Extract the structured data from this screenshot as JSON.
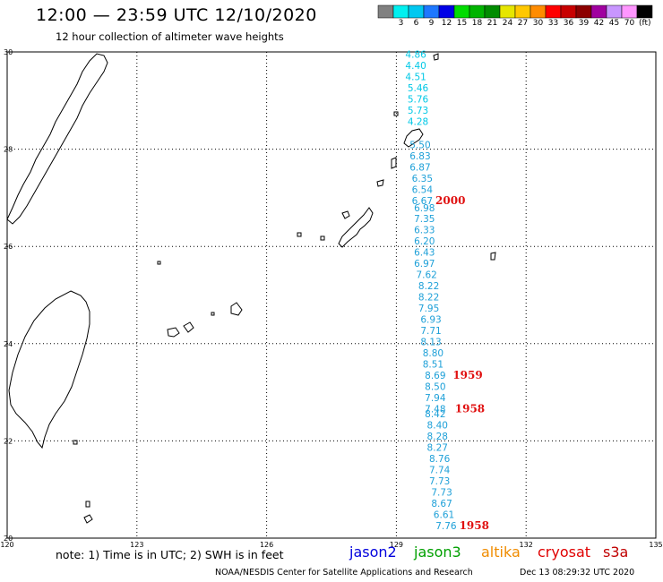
{
  "header": {
    "title": "12:00 — 23:59 UTC 12/10/2020",
    "subtitle": "12 hour collection of altimeter wave heights"
  },
  "legend": {
    "unit": "(ft)",
    "swatches": [
      {
        "color": "#808080",
        "label": ""
      },
      {
        "color": "#00f0f0",
        "label": "3"
      },
      {
        "color": "#00c8f0",
        "label": "6"
      },
      {
        "color": "#1e78ff",
        "label": "9"
      },
      {
        "color": "#0000e6",
        "label": "12"
      },
      {
        "color": "#00dc00",
        "label": "15"
      },
      {
        "color": "#00b400",
        "label": "18"
      },
      {
        "color": "#008c00",
        "label": "21"
      },
      {
        "color": "#e6e600",
        "label": "24"
      },
      {
        "color": "#ffc800",
        "label": "27"
      },
      {
        "color": "#ff8c00",
        "label": "30"
      },
      {
        "color": "#ff0000",
        "label": "33"
      },
      {
        "color": "#c80000",
        "label": "36"
      },
      {
        "color": "#8c0000",
        "label": "39"
      },
      {
        "color": "#a000a0",
        "label": "42"
      },
      {
        "color": "#c896ff",
        "label": "45"
      },
      {
        "color": "#ff96ff",
        "label": "70"
      },
      {
        "color": "#000000",
        "label": ""
      }
    ]
  },
  "axes": {
    "lon_ticks": [
      "120",
      "123",
      "126",
      "129",
      "132",
      "135"
    ],
    "lat_ticks": [
      "30",
      "28",
      "26",
      "24",
      "22",
      "20"
    ]
  },
  "track": {
    "color": "#1ea0d8",
    "top_color": "#00c8e6",
    "readings": [
      {
        "lon": 129.45,
        "lat": 29.95,
        "value": "4.86"
      },
      {
        "lon": 129.45,
        "lat": 29.72,
        "value": "4.40"
      },
      {
        "lon": 129.45,
        "lat": 29.49,
        "value": "4.51"
      },
      {
        "lon": 129.5,
        "lat": 29.26,
        "value": "5.46"
      },
      {
        "lon": 129.5,
        "lat": 29.03,
        "value": "5.76"
      },
      {
        "lon": 129.5,
        "lat": 28.8,
        "value": "5.73"
      },
      {
        "lon": 129.5,
        "lat": 28.57,
        "value": "4.28"
      },
      {
        "lon": 129.55,
        "lat": 28.09,
        "value": "5.50"
      },
      {
        "lon": 129.55,
        "lat": 27.86,
        "value": "6.83"
      },
      {
        "lon": 129.55,
        "lat": 27.63,
        "value": "6.87"
      },
      {
        "lon": 129.6,
        "lat": 27.4,
        "value": "6.35"
      },
      {
        "lon": 129.6,
        "lat": 27.17,
        "value": "6.54"
      },
      {
        "lon": 129.6,
        "lat": 26.94,
        "value": "6.67"
      },
      {
        "lon": 129.65,
        "lat": 26.8,
        "value": "6.98"
      },
      {
        "lon": 129.65,
        "lat": 26.57,
        "value": "7.35"
      },
      {
        "lon": 129.65,
        "lat": 26.34,
        "value": "6.33"
      },
      {
        "lon": 129.65,
        "lat": 26.11,
        "value": "6.20"
      },
      {
        "lon": 129.65,
        "lat": 25.88,
        "value": "6.43"
      },
      {
        "lon": 129.65,
        "lat": 25.65,
        "value": "6.97"
      },
      {
        "lon": 129.7,
        "lat": 25.42,
        "value": "7.62"
      },
      {
        "lon": 129.75,
        "lat": 25.19,
        "value": "8.22"
      },
      {
        "lon": 129.75,
        "lat": 24.96,
        "value": "8.22"
      },
      {
        "lon": 129.75,
        "lat": 24.73,
        "value": "7.95"
      },
      {
        "lon": 129.8,
        "lat": 24.5,
        "value": "6.93"
      },
      {
        "lon": 129.8,
        "lat": 24.27,
        "value": "7.71"
      },
      {
        "lon": 129.8,
        "lat": 24.04,
        "value": "8.13"
      },
      {
        "lon": 129.85,
        "lat": 23.81,
        "value": "8.80"
      },
      {
        "lon": 129.85,
        "lat": 23.58,
        "value": "8.51"
      },
      {
        "lon": 129.9,
        "lat": 23.35,
        "value": "8.69"
      },
      {
        "lon": 129.9,
        "lat": 23.12,
        "value": "8.50"
      },
      {
        "lon": 129.9,
        "lat": 22.89,
        "value": "7.94"
      },
      {
        "lon": 129.9,
        "lat": 22.66,
        "value": "7.48"
      },
      {
        "lon": 129.9,
        "lat": 22.56,
        "value": "8.42"
      },
      {
        "lon": 129.95,
        "lat": 22.33,
        "value": "8.40"
      },
      {
        "lon": 129.95,
        "lat": 22.1,
        "value": "8.28"
      },
      {
        "lon": 129.95,
        "lat": 21.87,
        "value": "8.27"
      },
      {
        "lon": 130.0,
        "lat": 21.64,
        "value": "8.76"
      },
      {
        "lon": 130.0,
        "lat": 21.41,
        "value": "7.74"
      },
      {
        "lon": 130.0,
        "lat": 21.18,
        "value": "7.73"
      },
      {
        "lon": 130.05,
        "lat": 20.95,
        "value": "7.73"
      },
      {
        "lon": 130.05,
        "lat": 20.72,
        "value": "8.67"
      },
      {
        "lon": 130.1,
        "lat": 20.49,
        "value": "6.61"
      },
      {
        "lon": 130.15,
        "lat": 20.26,
        "value": "7.76"
      }
    ]
  },
  "time_labels": [
    {
      "lon": 130.25,
      "lat": 26.94,
      "text": "2000",
      "color": "#e01010"
    },
    {
      "lon": 130.65,
      "lat": 23.35,
      "text": "1959",
      "color": "#e01010"
    },
    {
      "lon": 130.7,
      "lat": 22.66,
      "text": "1958",
      "color": "#e01010"
    },
    {
      "lon": 130.8,
      "lat": 20.26,
      "text": "1958",
      "color": "#e01010"
    }
  ],
  "footer": {
    "note": "note: 1) Time is in UTC; 2) SWH is in feet",
    "missions": [
      {
        "text": "jason2",
        "color": "#0000dd"
      },
      {
        "text": "jason3",
        "color": "#00a000"
      },
      {
        "text": "altika",
        "color": "#f08c00"
      },
      {
        "text": "cryosat",
        "color": "#e00000"
      },
      {
        "text": "s3a",
        "color": "#c00000"
      }
    ],
    "credit": "NOAA/NESDIS Center for Satellite Applications and Research",
    "timestamp": "Dec 13 08:29:32 UTC 2020"
  }
}
